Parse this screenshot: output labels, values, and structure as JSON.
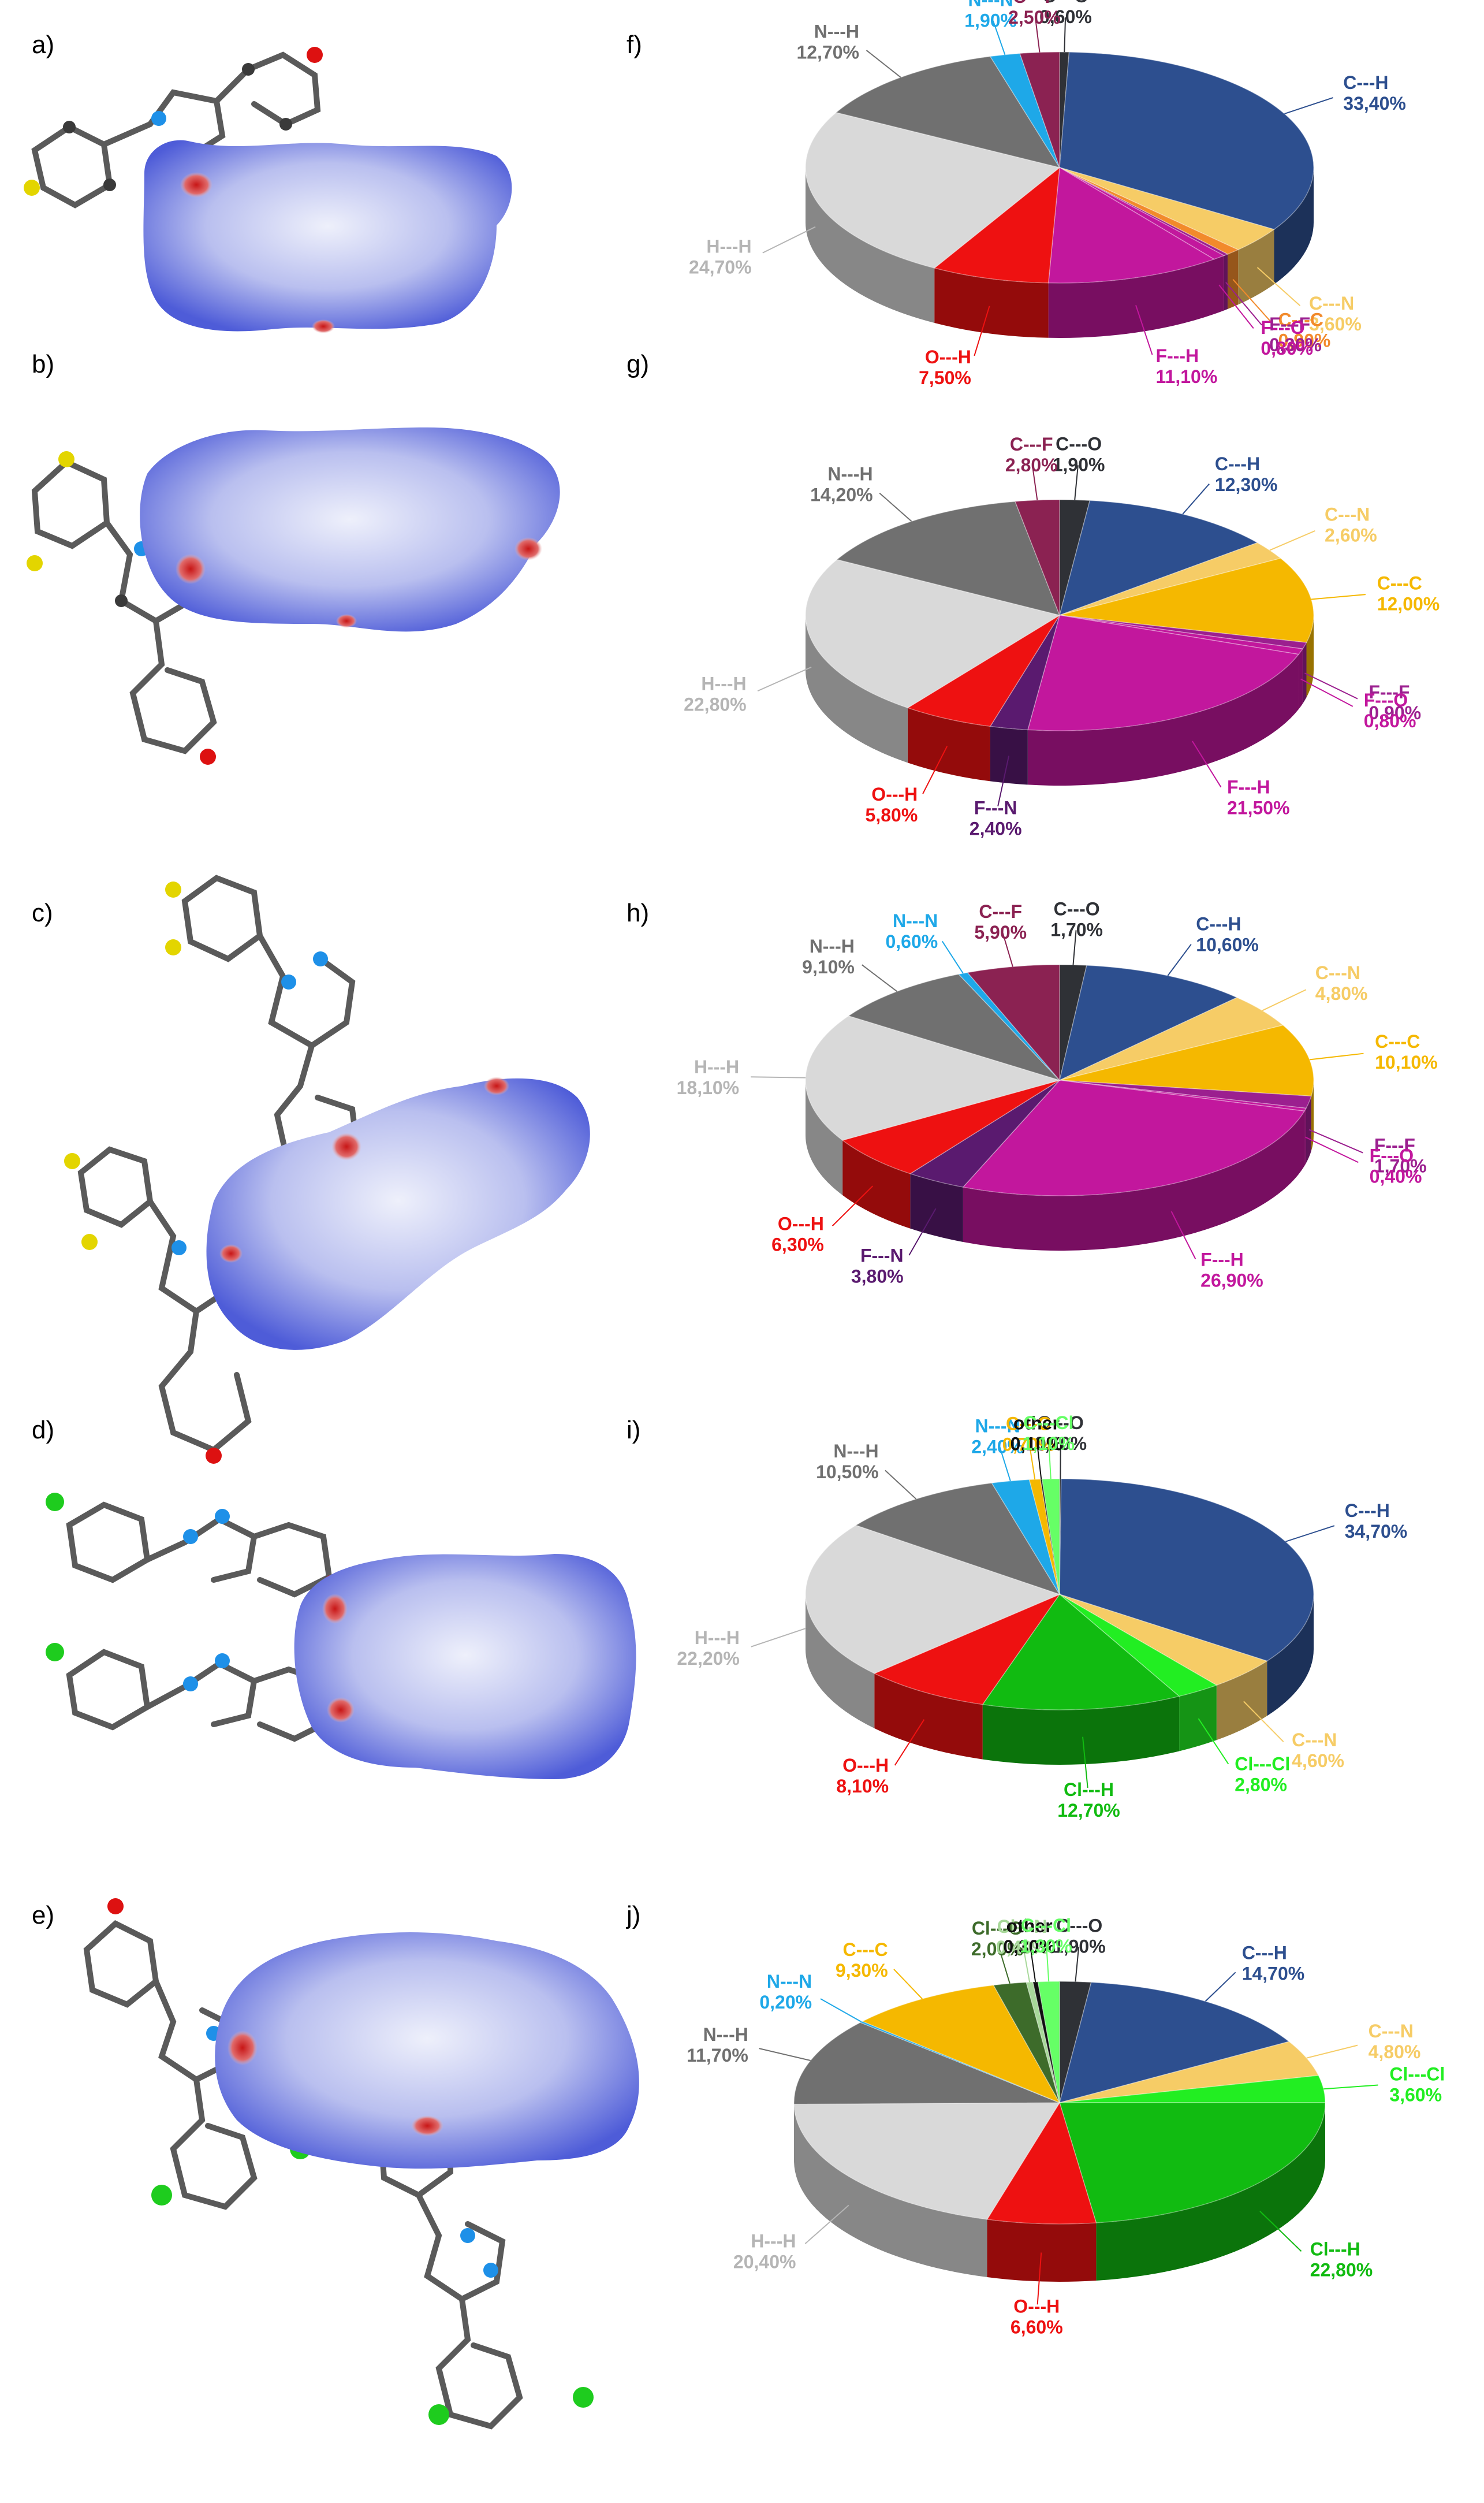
{
  "colors": {
    "C---F": "#8b2252",
    "C---O": "#2f3136",
    "C---H": "#2d4f8f",
    "C---N": "#f6cc66",
    "C---C": "#f5b800",
    "C---C (panel f)": "#f28a2b",
    "F---F": "#9b1f8f",
    "F---O": "#c2179d",
    "F---H": "#c2179d",
    "F---N": "#5a1a6f",
    "O---H": "#ee1111",
    "H---H": "#d9d9d9",
    "N---H": "#707070",
    "N---N": "#1ea8e8",
    "Cl---Cl": "#22ee22",
    "Cl---H": "#11bb11",
    "C---Cl": "#66ff66",
    "Cl---O": "#3d6b2a",
    "Cl---N": "#a8d89a",
    "other": "#111111"
  },
  "panels": {
    "a": "a)",
    "b": "b)",
    "c": "c)",
    "d": "d)",
    "e": "e)",
    "f": "f)",
    "g": "g)",
    "h": "h)",
    "i": "i)",
    "j": "j)"
  },
  "chart_data": [
    {
      "type": "pie",
      "panel": "f)",
      "slices": [
        {
          "label": "C---O",
          "value": 0.6,
          "text": "0,60%"
        },
        {
          "label": "C---H",
          "value": 33.4,
          "text": "33,40%"
        },
        {
          "label": "C---N",
          "value": 3.6,
          "text": "3,60%"
        },
        {
          "label": "C---C",
          "value": 0.9,
          "text": "0,90%"
        },
        {
          "label": "F---F",
          "value": 0.3,
          "text": "0,30%"
        },
        {
          "label": "F---O",
          "value": 0.8,
          "text": "0,80%"
        },
        {
          "label": "F---H",
          "value": 11.1,
          "text": "11,10%"
        },
        {
          "label": "O---H",
          "value": 7.5,
          "text": "7,50%"
        },
        {
          "label": "H---H",
          "value": 24.7,
          "text": "24,70%"
        },
        {
          "label": "N---H",
          "value": 12.7,
          "text": "12,70%"
        },
        {
          "label": "N---N",
          "value": 1.9,
          "text": "1,90%"
        },
        {
          "label": "C---F",
          "value": 2.5,
          "text": "2,50%"
        }
      ]
    },
    {
      "type": "pie",
      "panel": "g)",
      "slices": [
        {
          "label": "C---O",
          "value": 1.9,
          "text": "1,90%"
        },
        {
          "label": "C---H",
          "value": 12.3,
          "text": "12,30%"
        },
        {
          "label": "C---N",
          "value": 2.6,
          "text": "2,60%"
        },
        {
          "label": "C---C",
          "value": 12.0,
          "text": "12,00%"
        },
        {
          "label": "F---F",
          "value": 0.9,
          "text": "0,90%"
        },
        {
          "label": "F---O",
          "value": 0.8,
          "text": "0,80%"
        },
        {
          "label": "F---H",
          "value": 21.5,
          "text": "21,50%"
        },
        {
          "label": "F---N",
          "value": 2.4,
          "text": "2,40%"
        },
        {
          "label": "O---H",
          "value": 5.8,
          "text": "5,80%"
        },
        {
          "label": "H---H",
          "value": 22.8,
          "text": "22,80%"
        },
        {
          "label": "N---H",
          "value": 14.2,
          "text": "14,20%"
        },
        {
          "label": "C---F",
          "value": 2.8,
          "text": "2,80%"
        }
      ]
    },
    {
      "type": "pie",
      "panel": "h)",
      "slices": [
        {
          "label": "C---O",
          "value": 1.7,
          "text": "1,70%"
        },
        {
          "label": "C---H",
          "value": 10.6,
          "text": "10,60%"
        },
        {
          "label": "C---N",
          "value": 4.8,
          "text": "4,80%"
        },
        {
          "label": "C---C",
          "value": 10.1,
          "text": "10,10%"
        },
        {
          "label": "F---F",
          "value": 1.7,
          "text": "1,70%"
        },
        {
          "label": "F---O",
          "value": 0.4,
          "text": "0,40%"
        },
        {
          "label": "F---H",
          "value": 26.9,
          "text": "26,90%"
        },
        {
          "label": "F---N",
          "value": 3.8,
          "text": "3,80%"
        },
        {
          "label": "O---H",
          "value": 6.3,
          "text": "6,30%"
        },
        {
          "label": "H---H",
          "value": 18.1,
          "text": "18,10%"
        },
        {
          "label": "N---H",
          "value": 9.1,
          "text": "9,10%"
        },
        {
          "label": "N---N",
          "value": 0.6,
          "text": "0,60%"
        },
        {
          "label": "C---F",
          "value": 5.9,
          "text": "5,90%"
        }
      ]
    },
    {
      "type": "pie",
      "panel": "i)",
      "slices": [
        {
          "label": "C---O",
          "value": 0.1,
          "text": "0,10%"
        },
        {
          "label": "C---H",
          "value": 34.7,
          "text": "34,70%"
        },
        {
          "label": "C---N",
          "value": 4.6,
          "text": "4,60%"
        },
        {
          "label": "Cl---Cl",
          "value": 2.8,
          "text": "2,80%"
        },
        {
          "label": "Cl---H",
          "value": 12.7,
          "text": "12,70%"
        },
        {
          "label": "O---H",
          "value": 8.1,
          "text": "8,10%"
        },
        {
          "label": "H---H",
          "value": 22.2,
          "text": "22,20%"
        },
        {
          "label": "N---H",
          "value": 10.5,
          "text": "10,50%"
        },
        {
          "label": "N---N",
          "value": 2.4,
          "text": "2,40%"
        },
        {
          "label": "C---C",
          "value": 0.7,
          "text": "0,70%"
        },
        {
          "label": "other",
          "value": 0.1,
          "text": "0,10%"
        },
        {
          "label": "C---Cl",
          "value": 1.1,
          "text": "1,10%"
        }
      ]
    },
    {
      "type": "pie",
      "panel": "j)",
      "slices": [
        {
          "label": "C---O",
          "value": 1.9,
          "text": "1,90%"
        },
        {
          "label": "C---H",
          "value": 14.7,
          "text": "14,70%"
        },
        {
          "label": "C---N",
          "value": 4.8,
          "text": "4,80%"
        },
        {
          "label": "Cl---Cl",
          "value": 3.6,
          "text": "3,60%"
        },
        {
          "label": "Cl---H",
          "value": 22.8,
          "text": "22,80%"
        },
        {
          "label": "O---H",
          "value": 6.6,
          "text": "6,60%"
        },
        {
          "label": "H---H",
          "value": 20.4,
          "text": "20,40%"
        },
        {
          "label": "N---H",
          "value": 11.7,
          "text": "11,70%"
        },
        {
          "label": "N---N",
          "value": 0.2,
          "text": "0,20%"
        },
        {
          "label": "C---C",
          "value": 9.3,
          "text": "9,30%"
        },
        {
          "label": "Cl---O",
          "value": 2.0,
          "text": "2,00%"
        },
        {
          "label": "Cl---N",
          "value": 0.4,
          "text": "0,40%"
        },
        {
          "label": "other",
          "value": 0.3,
          "text": "0,30%"
        },
        {
          "label": "C---Cl",
          "value": 1.3,
          "text": "1,30%"
        }
      ]
    }
  ]
}
